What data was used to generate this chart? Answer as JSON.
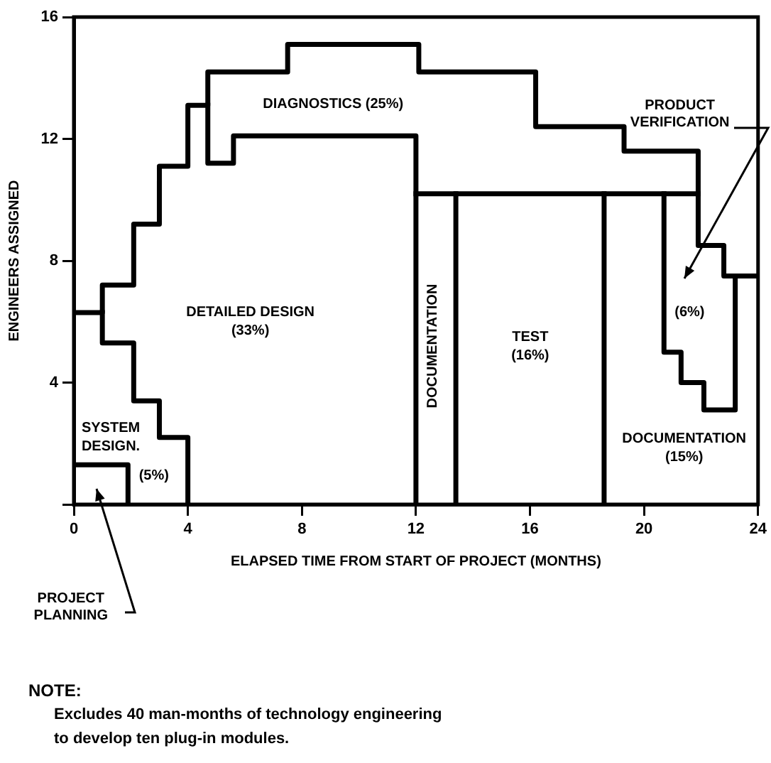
{
  "chart_data": {
    "type": "line",
    "xlabel": "ELAPSED TIME FROM START OF PROJECT (MONTHS)",
    "ylabel": "ENGINEERS ASSIGNED",
    "xlim": [
      0,
      24
    ],
    "xticks": [
      0,
      4,
      8,
      12,
      16,
      20,
      24
    ],
    "ylim": [
      0,
      16
    ],
    "yticks": [
      {
        "value": 0,
        "label": null
      },
      4,
      8,
      12,
      16
    ],
    "grid": false,
    "legend": false,
    "marker": "none",
    "line_style": "solid",
    "series": [
      {
        "color": "#000000",
        "x": [
          0,
          1,
          1,
          2.1,
          2.1,
          3,
          3,
          4,
          4,
          4.7,
          4.7,
          7.5,
          7.5,
          12.1,
          12.1,
          16.2,
          16.2,
          19.3,
          19.3,
          21.9,
          21.9,
          22.8,
          22.8,
          24
        ],
        "values": [
          6.3,
          6.3,
          7.2,
          7.2,
          9.2,
          9.2,
          11.1,
          11.1,
          13.1,
          13.1,
          14.2,
          14.2,
          15.1,
          15.1,
          14.2,
          14.2,
          12.4,
          12.4,
          11.6,
          11.6,
          8.5,
          8.5,
          7.5,
          7.5
        ]
      },
      {
        "color": "#000000",
        "x": [
          1,
          1,
          2.1,
          2.1,
          3,
          3,
          4,
          4
        ],
        "values": [
          6.3,
          5.3,
          5.3,
          3.4,
          3.4,
          2.2,
          2.2,
          0
        ]
      },
      {
        "color": "#000000",
        "x": [
          0,
          1.9,
          1.9
        ],
        "values": [
          1.3,
          1.3,
          0
        ]
      },
      {
        "color": "#000000",
        "x": [
          4.7,
          4.7,
          5.6,
          5.6,
          12,
          12
        ],
        "values": [
          13.1,
          11.2,
          11.2,
          12.1,
          12.1,
          0
        ]
      },
      {
        "color": "#000000",
        "x": [
          12,
          21.9
        ],
        "values": [
          10.2,
          10.2
        ]
      },
      {
        "color": "#000000",
        "x": [
          13.4,
          13.4
        ],
        "values": [
          10.2,
          0
        ]
      },
      {
        "color": "#000000",
        "x": [
          18.6,
          18.6
        ],
        "values": [
          10.2,
          0
        ]
      },
      {
        "color": "#000000",
        "x": [
          20.7,
          20.7,
          21.3,
          21.3,
          22.1,
          22.1,
          23.2,
          23.2
        ],
        "values": [
          10.2,
          5.0,
          5.0,
          4.0,
          4.0,
          3.1,
          3.1,
          7.5
        ]
      }
    ],
    "annotations": [
      "SYSTEM\nDESIGN.",
      "(5%)",
      "DETAILED DESIGN\n(33%)",
      "DIAGNOSTICS (25%)",
      "DOCUMENTATION",
      "TEST\n(16%)",
      "DOCUMENTATION\n(15%)",
      "(6%)",
      "PRODUCT\nVERIFICATION",
      "PROJECT\nPLANNING",
      "NOTE:",
      "Excludes 40 man-months of technology engineering\nto develop ten plug-in modules."
    ]
  }
}
